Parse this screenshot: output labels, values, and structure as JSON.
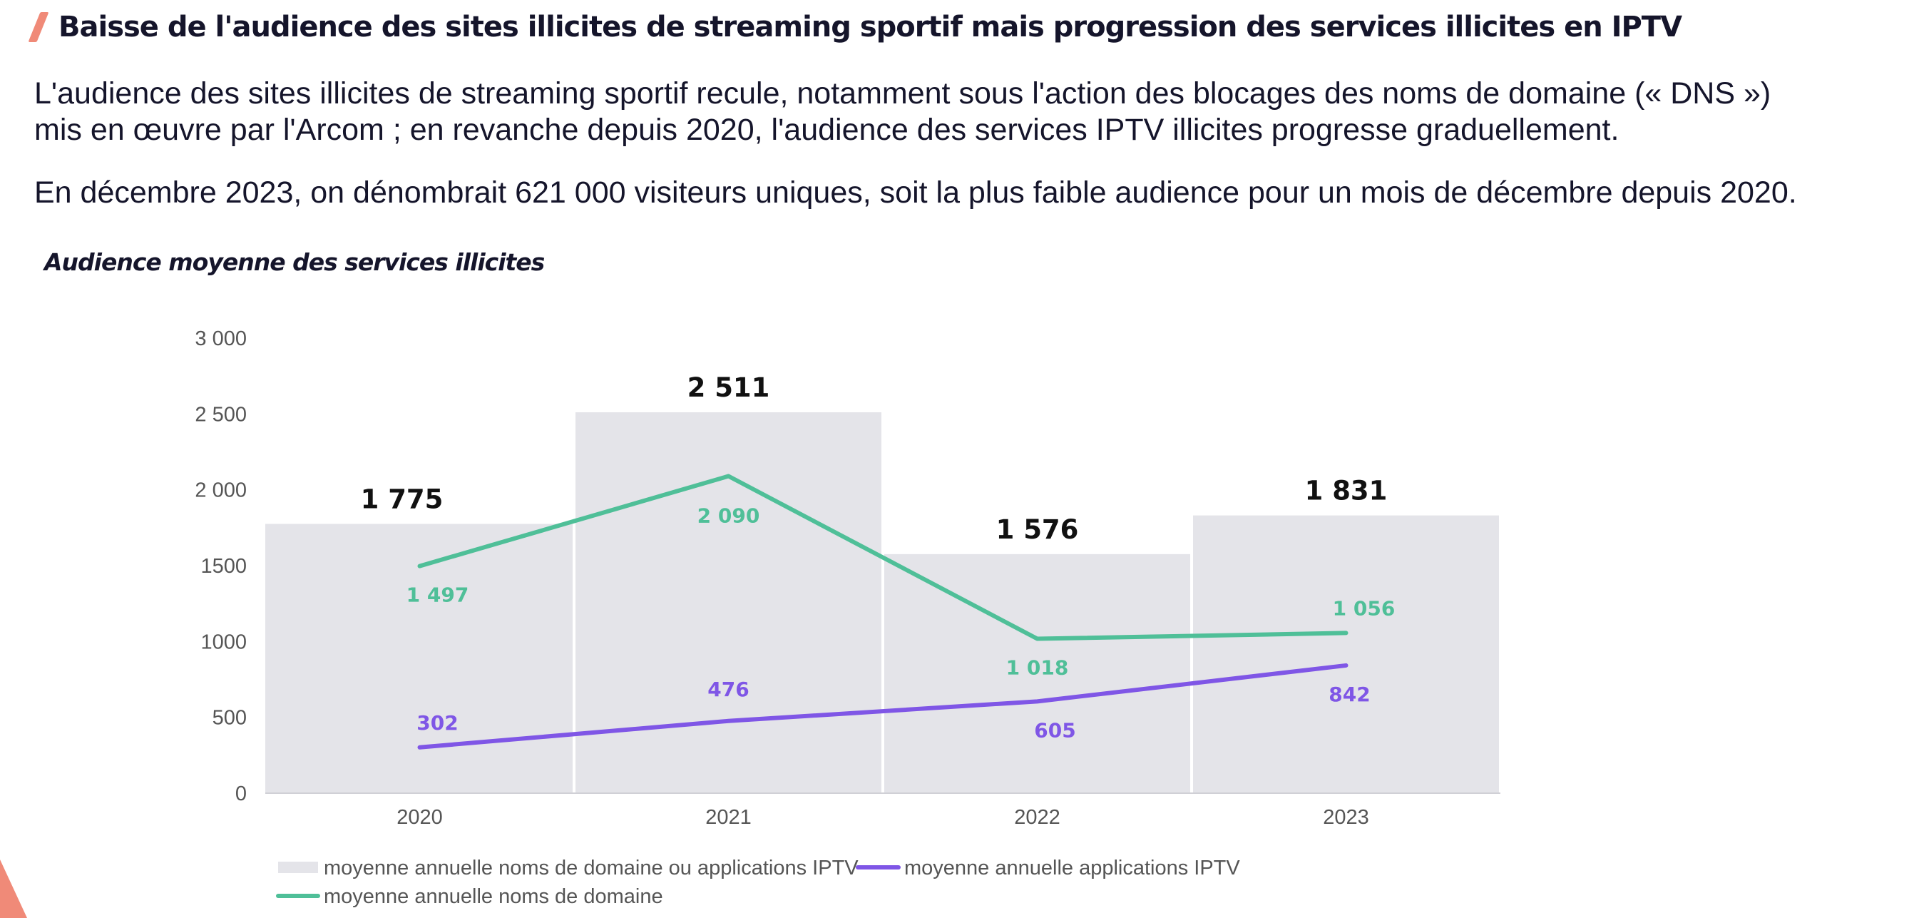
{
  "header": {
    "title": "Baisse de l'audience des sites illicites de streaming sportif mais progression des services illicites en IPTV"
  },
  "intro": {
    "paragraph_1_line_1": "L'audience des sites illicites de streaming sportif recule, notamment sous l'action des blocages des noms de domaine (« DNS »)",
    "paragraph_1_line_2": "mis en œuvre par l'Arcom ; en revanche depuis 2020, l'audience des services IPTV illicites progresse graduellement.",
    "paragraph_2": "En décembre 2023, on dénombrait 621 000 visiteurs uniques, soit la plus faible audience pour un mois de décembre depuis 2020."
  },
  "chart_title": "Audience moyenne des services illicites",
  "colors": {
    "bars": "#e4e4e9",
    "domains_line": "#4fbf98",
    "iptv_line": "#7f56e6",
    "axis_text": "#555555",
    "accent": "#f08a78"
  },
  "chart_data": {
    "type": "bar",
    "categories": [
      "2020",
      "2021",
      "2022",
      "2023"
    ],
    "ylim": [
      0,
      3000
    ],
    "yticks": [
      0,
      500,
      1000,
      1500,
      2000,
      2500,
      3000
    ],
    "ytick_labels": [
      "0",
      "500",
      "1000",
      "1500",
      "2 000",
      "2 500",
      "3 000"
    ],
    "grid": false,
    "legend_position": "bottom-left",
    "series": [
      {
        "name": "moyenne annuelle noms de domaine ou applications IPTV",
        "type": "bar",
        "values": [
          1775,
          2511,
          1576,
          1831
        ],
        "labels": [
          "1 775",
          "2 511",
          "1 576",
          "1 831"
        ]
      },
      {
        "name": "moyenne annuelle applications IPTV",
        "type": "line",
        "values": [
          302,
          476,
          605,
          842
        ],
        "labels": [
          "302",
          "476",
          "605",
          "842"
        ]
      },
      {
        "name": "moyenne annuelle noms de domaine",
        "type": "line",
        "values": [
          1497,
          2090,
          1018,
          1056
        ],
        "labels": [
          "1 497",
          "2 090",
          "1 018",
          "1 056"
        ]
      }
    ]
  }
}
